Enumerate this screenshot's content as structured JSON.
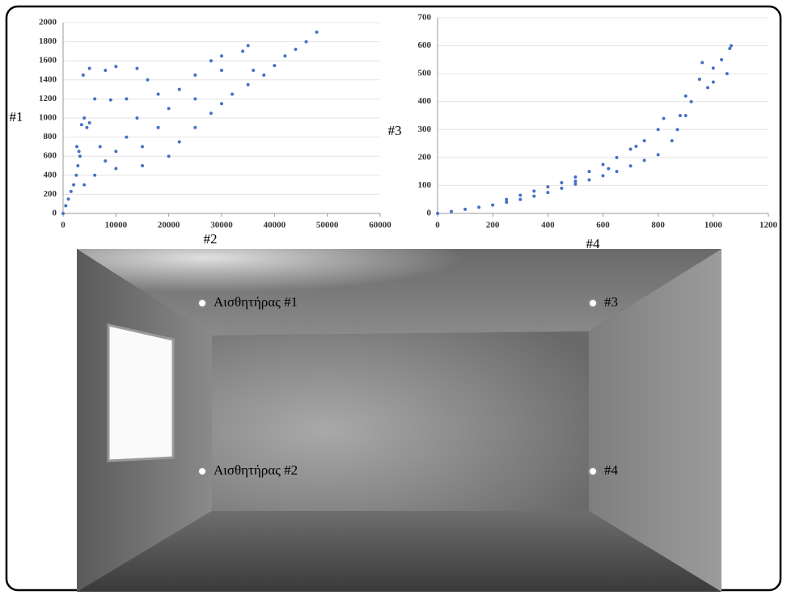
{
  "chart_data": [
    {
      "type": "scatter",
      "y_label": "#1",
      "x_label": "#2",
      "color": "#4472c4",
      "xlim": [
        0,
        60000
      ],
      "xticks": [
        0,
        10000,
        20000,
        30000,
        40000,
        50000,
        60000
      ],
      "ylim": [
        0,
        2000
      ],
      "yticks": [
        0,
        200,
        400,
        600,
        800,
        1000,
        1200,
        1400,
        1600,
        1800,
        2000
      ],
      "grid": true,
      "x": [
        0,
        500,
        1000,
        1500,
        2000,
        2500,
        2800,
        3000,
        2600,
        3200,
        3500,
        4000,
        4500,
        5000,
        3800,
        5000,
        8000,
        10000,
        6000,
        9000,
        12000,
        7000,
        8000,
        10000,
        12000,
        14000,
        15000,
        18000,
        20000,
        22000,
        25000,
        28000,
        30000,
        34000,
        35000,
        20000,
        22000,
        25000,
        28000,
        30000,
        32000,
        35000,
        38000,
        40000,
        42000,
        44000,
        46000,
        48000,
        16000,
        14000,
        18000,
        25000,
        30000,
        36000,
        15000,
        6000,
        4000,
        10000
      ],
      "values": [
        0,
        80,
        150,
        230,
        300,
        400,
        500,
        650,
        700,
        600,
        930,
        1000,
        900,
        950,
        1450,
        1520,
        1500,
        1540,
        1200,
        1190,
        1200,
        700,
        550,
        650,
        800,
        1000,
        700,
        900,
        1100,
        1300,
        1450,
        1600,
        1650,
        1700,
        1760,
        600,
        750,
        900,
        1050,
        1150,
        1250,
        1350,
        1450,
        1550,
        1650,
        1720,
        1800,
        1900,
        1400,
        1520,
        1250,
        1200,
        1500,
        1500,
        500,
        400,
        300,
        470
      ]
    },
    {
      "type": "scatter",
      "y_label": "#3",
      "x_label": "#4",
      "color": "#4472c4",
      "xlim": [
        0,
        1200
      ],
      "xticks": [
        0,
        200,
        400,
        600,
        800,
        1000,
        1200
      ],
      "ylim": [
        0,
        700
      ],
      "yticks": [
        0,
        100,
        200,
        300,
        400,
        500,
        600,
        700
      ],
      "grid": true,
      "x": [
        0,
        50,
        100,
        150,
        200,
        250,
        300,
        350,
        400,
        400,
        450,
        450,
        500,
        500,
        550,
        550,
        600,
        600,
        650,
        650,
        700,
        700,
        750,
        750,
        800,
        800,
        820,
        850,
        870,
        880,
        900,
        900,
        920,
        950,
        960,
        980,
        1000,
        1000,
        1030,
        1050,
        1060,
        1065,
        350,
        300,
        250,
        500,
        620,
        720
      ],
      "values": [
        0,
        7,
        15,
        22,
        30,
        40,
        50,
        62,
        75,
        95,
        90,
        110,
        105,
        130,
        120,
        150,
        135,
        175,
        150,
        200,
        170,
        230,
        190,
        260,
        210,
        300,
        340,
        260,
        300,
        350,
        350,
        420,
        400,
        480,
        540,
        450,
        520,
        470,
        550,
        500,
        590,
        600,
        80,
        65,
        50,
        115,
        160,
        240
      ]
    }
  ],
  "room": {
    "sensors": [
      {
        "label": "Αισθητήρας #1"
      },
      {
        "label": "#3"
      },
      {
        "label": "Αισθητήρας #2"
      },
      {
        "label": "#4"
      }
    ]
  }
}
